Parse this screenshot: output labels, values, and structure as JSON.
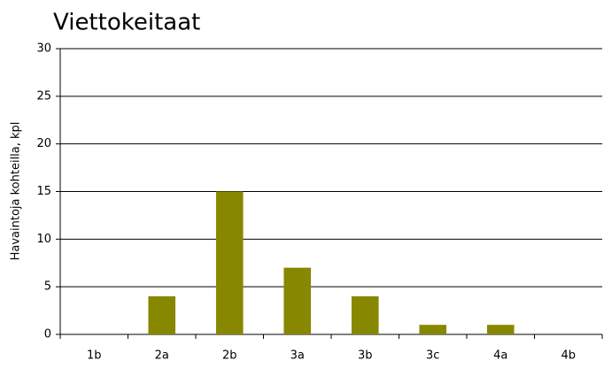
{
  "chart_data": {
    "type": "bar",
    "title": "Viettokeitaat",
    "ylabel": "Havaintoja kohteilla, kpl",
    "categories": [
      "1b",
      "2a",
      "2b",
      "3a",
      "3b",
      "3c",
      "4a",
      "4b"
    ],
    "values": [
      0,
      4,
      15,
      7,
      4,
      1,
      1,
      0
    ],
    "color": "#878700",
    "ylim": [
      0,
      30
    ],
    "yticks": [
      0,
      5,
      10,
      15,
      20,
      25,
      30
    ],
    "grid": true
  }
}
